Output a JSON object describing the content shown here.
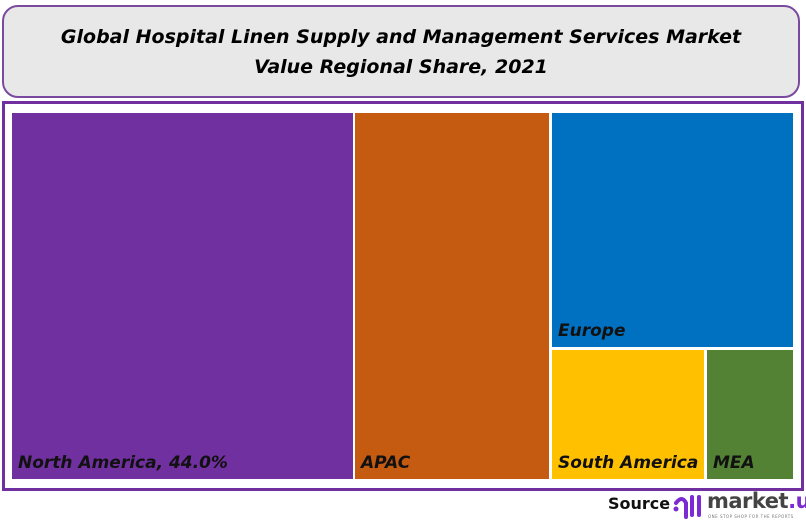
{
  "chart_data": {
    "type": "treemap",
    "title": "Global Hospital Linen Supply and Management Services Market Value Regional Share, 2021",
    "items": [
      {
        "name": "North America",
        "label": "North America, 44.0%",
        "value": 44.0,
        "color": "#7030a0"
      },
      {
        "name": "APAC",
        "label": "APAC",
        "value": 25.0,
        "color": "#c55a11"
      },
      {
        "name": "Europe",
        "label": "Europe",
        "value": 19.9,
        "color": "#0070c0"
      },
      {
        "name": "South America",
        "label": "South America",
        "value": 7.0,
        "color": "#ffc000"
      },
      {
        "name": "MEA",
        "label": "MEA",
        "value": 4.1,
        "color": "#548235"
      }
    ]
  },
  "footer": {
    "source_label": "Source",
    "brand": "market.us",
    "brand_main": "market",
    "brand_suffix": ".us",
    "tagline": "ONE STOP SHOP FOR THE REPORTS"
  }
}
